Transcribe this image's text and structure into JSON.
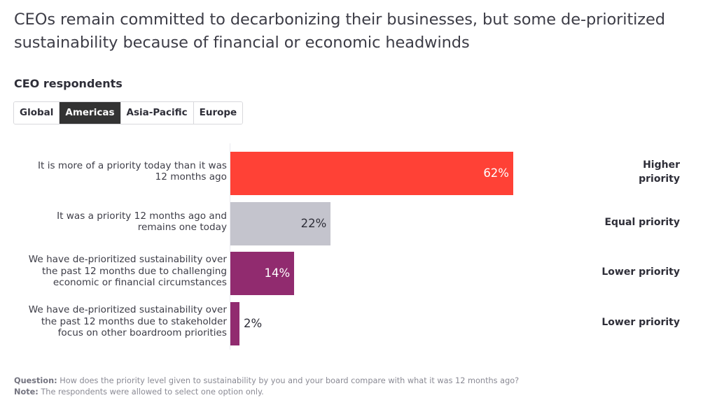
{
  "title": "CEOs remain committed to decarbonizing their businesses, but some de-prioritized sustainability because of financial or economic headwinds",
  "subtitle": "CEO respondents",
  "tabs": [
    {
      "label": "Global",
      "active": false
    },
    {
      "label": "Americas",
      "active": true
    },
    {
      "label": "Asia-Pacific",
      "active": false
    },
    {
      "label": "Europe",
      "active": false
    }
  ],
  "chart_data": {
    "type": "bar",
    "orientation": "horizontal",
    "title": "",
    "xlabel": "",
    "ylabel": "",
    "xlim": [
      0,
      100
    ],
    "unit": "%",
    "categories": [
      "It is more of a priority today than it was 12 months ago",
      "It was a priority 12 months ago and remains one today",
      "We have de-prioritized sustainability over the past 12 months due to challenging economic or financial circumstances",
      "We have de-prioritized sustainability over the past 12 months due to stakeholder focus on other boardroom priorities"
    ],
    "category_lines": [
      [
        "It is more of a priority today than it was",
        "12 months ago"
      ],
      [
        "It was a priority 12 months ago and",
        "remains one today"
      ],
      [
        "We have de-prioritized sustainability over",
        "the past 12 months due to challenging",
        "economic or financial circumstances"
      ],
      [
        "We have de-prioritized sustainability over",
        "the past 12 months due to stakeholder",
        "focus on other boardroom priorities"
      ]
    ],
    "values": [
      62,
      22,
      14,
      2
    ],
    "data_labels": [
      "62%",
      "22%",
      "14%",
      "2%"
    ],
    "colors": [
      "#ff4136",
      "#c4c4cd",
      "#912b6f",
      "#912b6f"
    ],
    "label_colors": [
      "#ffffff",
      "#2e2e38",
      "#ffffff",
      "#2e2e38"
    ],
    "group_labels": [
      "Higher priority",
      "Equal priority",
      "Lower priority",
      "Lower priority"
    ],
    "group_label_lines": [
      [
        "Higher",
        "priority"
      ],
      [
        "Equal priority"
      ],
      [
        "Lower priority"
      ],
      [
        "Lower priority"
      ]
    ],
    "grid": false,
    "legend": "none"
  },
  "footer": {
    "question_label": "Question:",
    "question_text": " How does the priority level given to sustainability by you and your board compare with what it was 12 months ago?",
    "note_label": "Note:",
    "note_text": " The respondents were allowed to select one option only."
  }
}
